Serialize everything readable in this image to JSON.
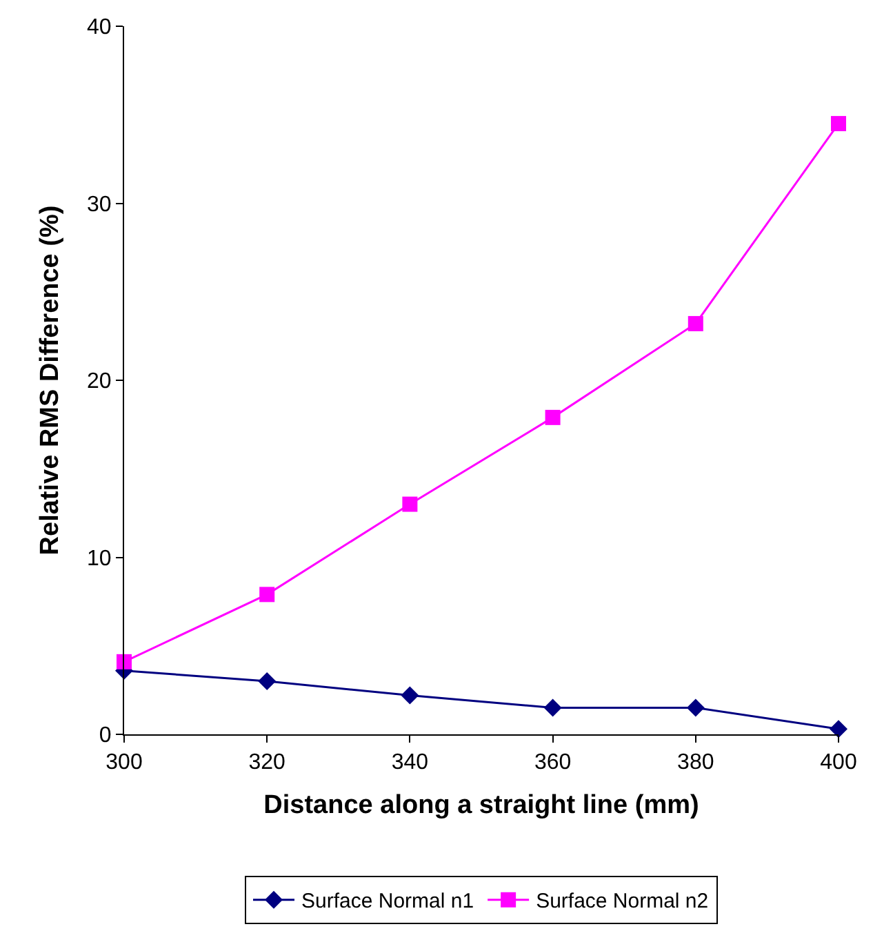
{
  "chart_data": {
    "type": "line",
    "xlabel": "Distance along a straight line (mm)",
    "ylabel": "Relative RMS Difference (%)",
    "x": [
      300,
      320,
      340,
      360,
      380,
      400
    ],
    "series": [
      {
        "name": "Surface Normal n1",
        "color": "#000080",
        "marker": "diamond",
        "values": [
          3.6,
          3.0,
          2.2,
          1.5,
          1.5,
          0.3
        ]
      },
      {
        "name": "Surface Normal n2",
        "color": "#ff00ff",
        "marker": "square",
        "values": [
          4.1,
          7.9,
          13.0,
          17.9,
          23.2,
          34.5
        ]
      }
    ],
    "xlim": [
      300,
      400
    ],
    "xticks": [
      300,
      320,
      340,
      360,
      380,
      400
    ],
    "ylim": [
      0,
      40
    ],
    "yticks": [
      0,
      10,
      20,
      30,
      40
    ],
    "legend": "bottom",
    "line_style": "solid"
  }
}
